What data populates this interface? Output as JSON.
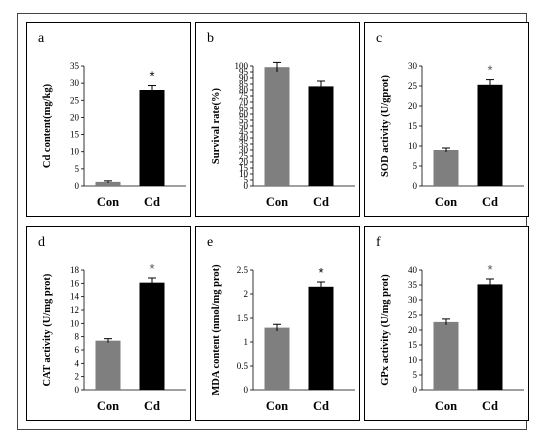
{
  "colors": {
    "con_bar": "#7f7f7f",
    "cd_bar": "#000000",
    "frame": "#444444",
    "panel_border": "#000000",
    "star_light": "#555555"
  },
  "chart_data": [
    {
      "panel": "a",
      "type": "bar",
      "categories": [
        "Con",
        "Cd"
      ],
      "values": [
        1.2,
        28
      ],
      "errors": [
        0.3,
        1.3
      ],
      "ylabel": "Cd content(mg/kg)",
      "ylim": [
        0,
        35
      ],
      "yticks": [
        0,
        5,
        10,
        15,
        20,
        25,
        30,
        35
      ],
      "annotation": "*",
      "annotation_index": 1,
      "star_color": "#000000"
    },
    {
      "panel": "b",
      "type": "bar",
      "categories": [
        "Con",
        "Cd"
      ],
      "values": [
        99,
        83
      ],
      "errors": [
        4,
        4.5
      ],
      "ylabel": "Survival rate(%)",
      "ylim": [
        0,
        100
      ],
      "yticks": [
        0,
        5,
        10,
        15,
        20,
        25,
        30,
        35,
        40,
        45,
        50,
        55,
        60,
        65,
        70,
        75,
        80,
        85,
        90,
        95,
        100
      ],
      "annotation": "",
      "annotation_index": 1,
      "star_color": "#000000"
    },
    {
      "panel": "c",
      "type": "bar",
      "categories": [
        "Con",
        "Cd"
      ],
      "values": [
        9,
        25.3
      ],
      "errors": [
        0.5,
        1.3
      ],
      "ylabel": "SOD activity (U/gprot)",
      "ylim": [
        0,
        30
      ],
      "yticks": [
        0,
        5,
        10,
        15,
        20,
        25,
        30
      ],
      "annotation": "*",
      "annotation_index": 1,
      "star_color": "#555555"
    },
    {
      "panel": "d",
      "type": "bar",
      "categories": [
        "Con",
        "Cd"
      ],
      "values": [
        7.4,
        16.1
      ],
      "errors": [
        0.3,
        0.7
      ],
      "ylabel": "CAT activity (U/mg prot)",
      "ylim": [
        0,
        18
      ],
      "yticks": [
        0,
        2,
        4,
        6,
        8,
        10,
        12,
        14,
        16,
        18
      ],
      "annotation": "*",
      "annotation_index": 1,
      "star_color": "#555555"
    },
    {
      "panel": "e",
      "type": "bar",
      "categories": [
        "Con",
        "Cd"
      ],
      "values": [
        1.3,
        2.15
      ],
      "errors": [
        0.07,
        0.1
      ],
      "ylabel": "MDA content (nmol/mg prot)",
      "ylim": [
        0,
        2.5
      ],
      "yticks": [
        0,
        0.5,
        1,
        1.5,
        2,
        2.5
      ],
      "annotation": "*",
      "annotation_index": 1,
      "star_color": "#000000"
    },
    {
      "panel": "f",
      "type": "bar",
      "categories": [
        "Con",
        "Cd"
      ],
      "values": [
        22.7,
        35.2
      ],
      "errors": [
        1,
        1.8
      ],
      "ylabel": "GPx activity (U/mg prot)",
      "ylim": [
        0,
        40
      ],
      "yticks": [
        0,
        5,
        10,
        15,
        20,
        25,
        30,
        35,
        40
      ],
      "annotation": "*",
      "annotation_index": 1,
      "star_color": "#555555"
    }
  ]
}
